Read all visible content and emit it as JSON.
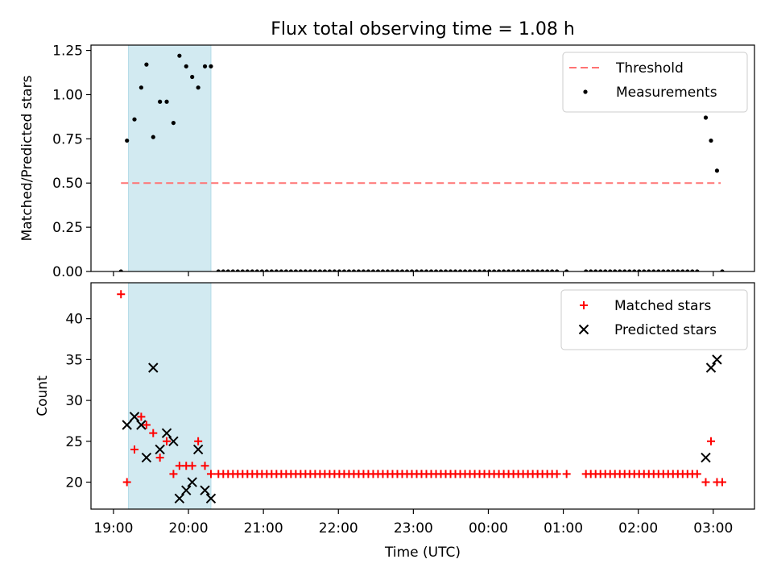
{
  "chart_data": {
    "title": "Flux total observing time = 1.08 h",
    "xlabel": "Time (UTC)",
    "x_unit": "hours since 19:00 UTC",
    "x_range": [
      -0.3,
      8.55
    ],
    "x_ticks": [
      {
        "v": 0,
        "label": "19:00"
      },
      {
        "v": 1,
        "label": "20:00"
      },
      {
        "v": 2,
        "label": "21:00"
      },
      {
        "v": 3,
        "label": "22:00"
      },
      {
        "v": 4,
        "label": "23:00"
      },
      {
        "v": 5,
        "label": "00:00"
      },
      {
        "v": 6,
        "label": "01:00"
      },
      {
        "v": 7,
        "label": "02:00"
      },
      {
        "v": 8,
        "label": "03:00"
      }
    ],
    "highlight_span": [
      0.2,
      1.3
    ],
    "highlight_color": "#add8e6",
    "panels": [
      {
        "type": "scatter",
        "ylabel": "Matched/Predicted stars",
        "ylim": [
          0,
          1.28
        ],
        "yticks": [
          "0.00",
          "0.25",
          "0.50",
          "0.75",
          "1.00",
          "1.25"
        ],
        "ytick_values": [
          0,
          0.25,
          0.5,
          0.75,
          1.0,
          1.25
        ],
        "legend_position": "top-right",
        "threshold": {
          "name": "Threshold",
          "y": 0.5,
          "x": [
            0.1,
            8.1
          ],
          "color": "#ff7373"
        },
        "series": [
          {
            "name": "Measurements",
            "color": "#000000",
            "marker": "dot",
            "points": [
              [
                0.1,
                0
              ],
              [
                0.18,
                0.74
              ],
              [
                0.28,
                0.86
              ],
              [
                0.37,
                1.04
              ],
              [
                0.44,
                1.17
              ],
              [
                0.53,
                0.76
              ],
              [
                0.62,
                0.96
              ],
              [
                0.71,
                0.96
              ],
              [
                0.8,
                0.84
              ],
              [
                0.88,
                1.22
              ],
              [
                0.97,
                1.16
              ],
              [
                1.05,
                1.1
              ],
              [
                1.13,
                1.04
              ],
              [
                1.22,
                1.16
              ],
              [
                1.3,
                1.16
              ]
            ],
            "zero_run": {
              "start": 1.4,
              "end": 7.8,
              "step": 0.0645,
              "y": 0,
              "gaps": [
                [
                  5.94,
                  5.98
                ],
                [
                  6.08,
                  6.3
                ]
              ]
            },
            "tail_points": [
              [
                7.9,
                0.87
              ],
              [
                7.97,
                0.74
              ],
              [
                8.05,
                0.57
              ],
              [
                8.12,
                0
              ]
            ]
          }
        ]
      },
      {
        "type": "scatter",
        "ylabel": "Count",
        "ylim": [
          16.7,
          44.4
        ],
        "yticks": [
          "20",
          "25",
          "30",
          "35",
          "40"
        ],
        "ytick_values": [
          20,
          25,
          30,
          35,
          40
        ],
        "legend_position": "top-right",
        "series": [
          {
            "name": "Matched stars",
            "color": "#ff0000",
            "marker": "plus",
            "points": [
              [
                0.1,
                43
              ],
              [
                0.18,
                20
              ],
              [
                0.28,
                24
              ],
              [
                0.37,
                28
              ],
              [
                0.44,
                27
              ],
              [
                0.53,
                26
              ],
              [
                0.62,
                23
              ],
              [
                0.71,
                25
              ],
              [
                0.8,
                21
              ],
              [
                0.88,
                22
              ],
              [
                0.97,
                22
              ],
              [
                1.05,
                22
              ],
              [
                1.13,
                25
              ],
              [
                1.22,
                22
              ],
              [
                1.3,
                21
              ]
            ],
            "zero_run": {
              "start": 1.4,
              "end": 7.8,
              "step": 0.0645,
              "y": 21,
              "gaps": [
                [
                  5.94,
                  5.98
                ],
                [
                  6.08,
                  6.3
                ]
              ]
            },
            "tail_points": [
              [
                7.9,
                20
              ],
              [
                7.97,
                25
              ],
              [
                8.05,
                20
              ],
              [
                8.12,
                20
              ]
            ]
          },
          {
            "name": "Predicted stars",
            "color": "#000000",
            "marker": "x",
            "points": [
              [
                0.18,
                27
              ],
              [
                0.28,
                28
              ],
              [
                0.37,
                27
              ],
              [
                0.44,
                23
              ],
              [
                0.53,
                34
              ],
              [
                0.62,
                24
              ],
              [
                0.71,
                26
              ],
              [
                0.8,
                25
              ],
              [
                0.88,
                18
              ],
              [
                0.97,
                19
              ],
              [
                1.05,
                20
              ],
              [
                1.13,
                24
              ],
              [
                1.22,
                19
              ],
              [
                1.3,
                18
              ],
              [
                7.9,
                23
              ],
              [
                7.97,
                34
              ],
              [
                8.05,
                35
              ]
            ]
          }
        ]
      }
    ]
  }
}
